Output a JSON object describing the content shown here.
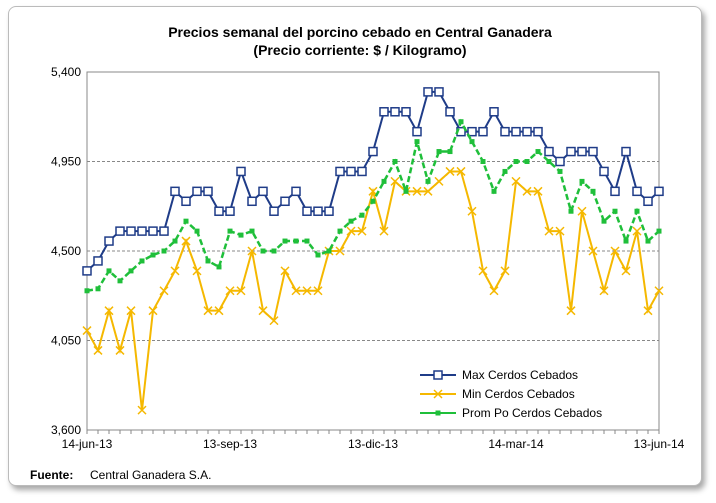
{
  "chart_data": {
    "type": "line",
    "title": "Precios semanal del porcino cebado en Central Ganadera",
    "subtitle": "(Precio corriente: $ / Kilogramo)",
    "categories": [
      "14-jun-13",
      null,
      null,
      null,
      null,
      null,
      null,
      null,
      null,
      null,
      null,
      null,
      null,
      "13-sep-13",
      null,
      null,
      null,
      null,
      null,
      null,
      null,
      null,
      null,
      null,
      null,
      null,
      "13-dic-13",
      null,
      null,
      null,
      null,
      null,
      null,
      null,
      null,
      null,
      null,
      null,
      null,
      "14-mar-14",
      null,
      null,
      null,
      null,
      null,
      null,
      null,
      null,
      null,
      null,
      null,
      null,
      "13-jun-14"
    ],
    "series": [
      {
        "name": "Max Cerdos Cebados",
        "color": "#1f3c88",
        "marker": "square",
        "values": [
          4400,
          4450,
          4550,
          4600,
          4600,
          4600,
          4600,
          4600,
          4800,
          4750,
          4800,
          4800,
          4700,
          4700,
          4900,
          4750,
          4800,
          4700,
          4750,
          4800,
          4700,
          4700,
          4700,
          4900,
          4900,
          4900,
          5000,
          5200,
          5200,
          5200,
          5100,
          5300,
          5300,
          5200,
          5100,
          5100,
          5100,
          5200,
          5100,
          5100,
          5100,
          5100,
          5000,
          4950,
          5000,
          5000,
          5000,
          4900,
          4800,
          5000,
          4800,
          4750,
          4800
        ]
      },
      {
        "name": "Min Cerdos Cebados",
        "color": "#f5b800",
        "marker": "x",
        "values": [
          4100,
          4000,
          4200,
          4000,
          4200,
          3700,
          4200,
          4300,
          4400,
          4550,
          4400,
          4200,
          4200,
          4300,
          4300,
          4500,
          4200,
          4150,
          4400,
          4300,
          4300,
          4300,
          4500,
          4500,
          4600,
          4600,
          4800,
          4600,
          4850,
          4800,
          4800,
          4800,
          4850,
          4900,
          4900,
          4700,
          4400,
          4300,
          4400,
          4850,
          4800,
          4800,
          4600,
          4600,
          4200,
          4700,
          4500,
          4300,
          4500,
          4400,
          4600,
          4200,
          4300
        ]
      },
      {
        "name": "Prom Po Cerdos Cebados",
        "color": "#1fbf3a",
        "marker": "dot",
        "values": [
          4300,
          4310,
          4400,
          4350,
          4400,
          4450,
          4480,
          4500,
          4550,
          4650,
          4600,
          4450,
          4420,
          4600,
          4580,
          4600,
          4500,
          4500,
          4550,
          4550,
          4550,
          4480,
          4500,
          4600,
          4650,
          4680,
          4750,
          4850,
          4950,
          4800,
          5050,
          4850,
          5000,
          5000,
          5150,
          5050,
          4950,
          4800,
          4900,
          4950,
          4950,
          5000,
          4950,
          4900,
          4700,
          4850,
          4800,
          4650,
          4700,
          4550,
          4700,
          4550,
          4600
        ]
      }
    ],
    "ylim": [
      3600,
      5400
    ],
    "yticks": [
      {
        "value": 3600,
        "label": "3,600"
      },
      {
        "value": 4050,
        "label": "4,050"
      },
      {
        "value": 4500,
        "label": "4,500"
      },
      {
        "value": 4950,
        "label": "4,950"
      },
      {
        "value": 5400,
        "label": "5,400"
      }
    ],
    "grid": true,
    "legend": "lower right",
    "source_label": "Fuente:",
    "source_text": "Central Ganadera S.A."
  }
}
